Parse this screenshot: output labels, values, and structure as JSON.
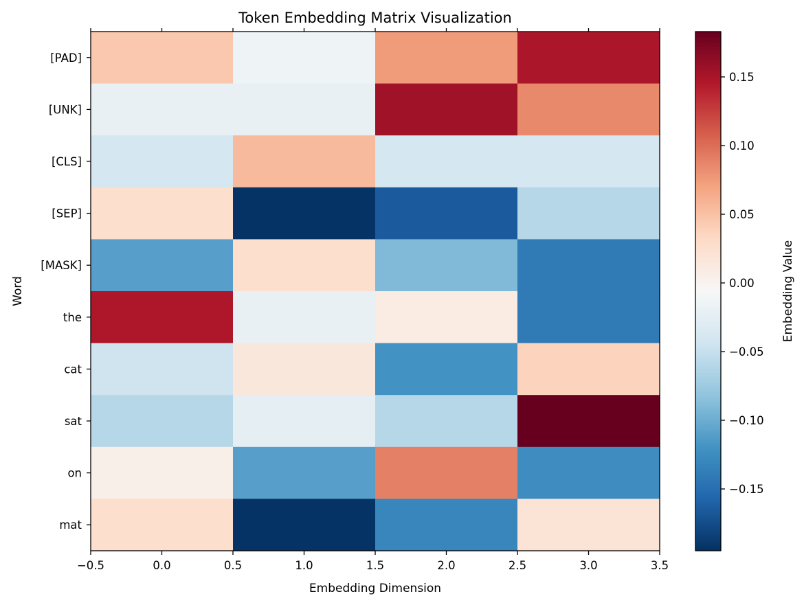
{
  "chart_data": {
    "type": "heatmap",
    "title": "Token Embedding Matrix Visualization",
    "xlabel": "Embedding Dimension",
    "ylabel": "Word",
    "rows": [
      "[PAD]",
      "[UNK]",
      "[CLS]",
      "[SEP]",
      "[MASK]",
      "the",
      "cat",
      "sat",
      "on",
      "mat"
    ],
    "columns": [
      0,
      1,
      2,
      3
    ],
    "values": [
      [
        0.045,
        -0.015,
        0.075,
        0.148
      ],
      [
        -0.02,
        -0.02,
        0.155,
        0.085
      ],
      [
        -0.04,
        0.055,
        -0.04,
        -0.04
      ],
      [
        0.027,
        -0.193,
        -0.165,
        -0.06
      ],
      [
        -0.11,
        0.027,
        -0.09,
        -0.14
      ],
      [
        0.147,
        -0.02,
        0.01,
        -0.14
      ],
      [
        -0.045,
        0.015,
        -0.12,
        0.037
      ],
      [
        -0.06,
        -0.025,
        -0.06,
        0.183
      ],
      [
        0.005,
        -0.11,
        0.09,
        -0.125
      ],
      [
        0.027,
        -0.193,
        -0.13,
        0.02
      ]
    ],
    "xlim": [
      -0.5,
      3.5
    ],
    "x_ticks": [
      "−0.5",
      "0.0",
      "0.5",
      "1.0",
      "1.5",
      "2.0",
      "2.5",
      "3.0",
      "3.5"
    ],
    "x_tick_values": [
      -0.5,
      0.0,
      0.5,
      1.0,
      1.5,
      2.0,
      2.5,
      3.0,
      3.5
    ],
    "colormap": "RdBu_r",
    "colorbar": {
      "label": "Embedding Value",
      "range": [
        -0.195,
        0.183
      ],
      "ticks": [
        "0.15",
        "0.10",
        "0.05",
        "0.00",
        "−0.05",
        "−0.10",
        "−0.15"
      ],
      "tick_values": [
        0.15,
        0.1,
        0.05,
        0.0,
        -0.05,
        -0.1,
        -0.15
      ]
    }
  }
}
